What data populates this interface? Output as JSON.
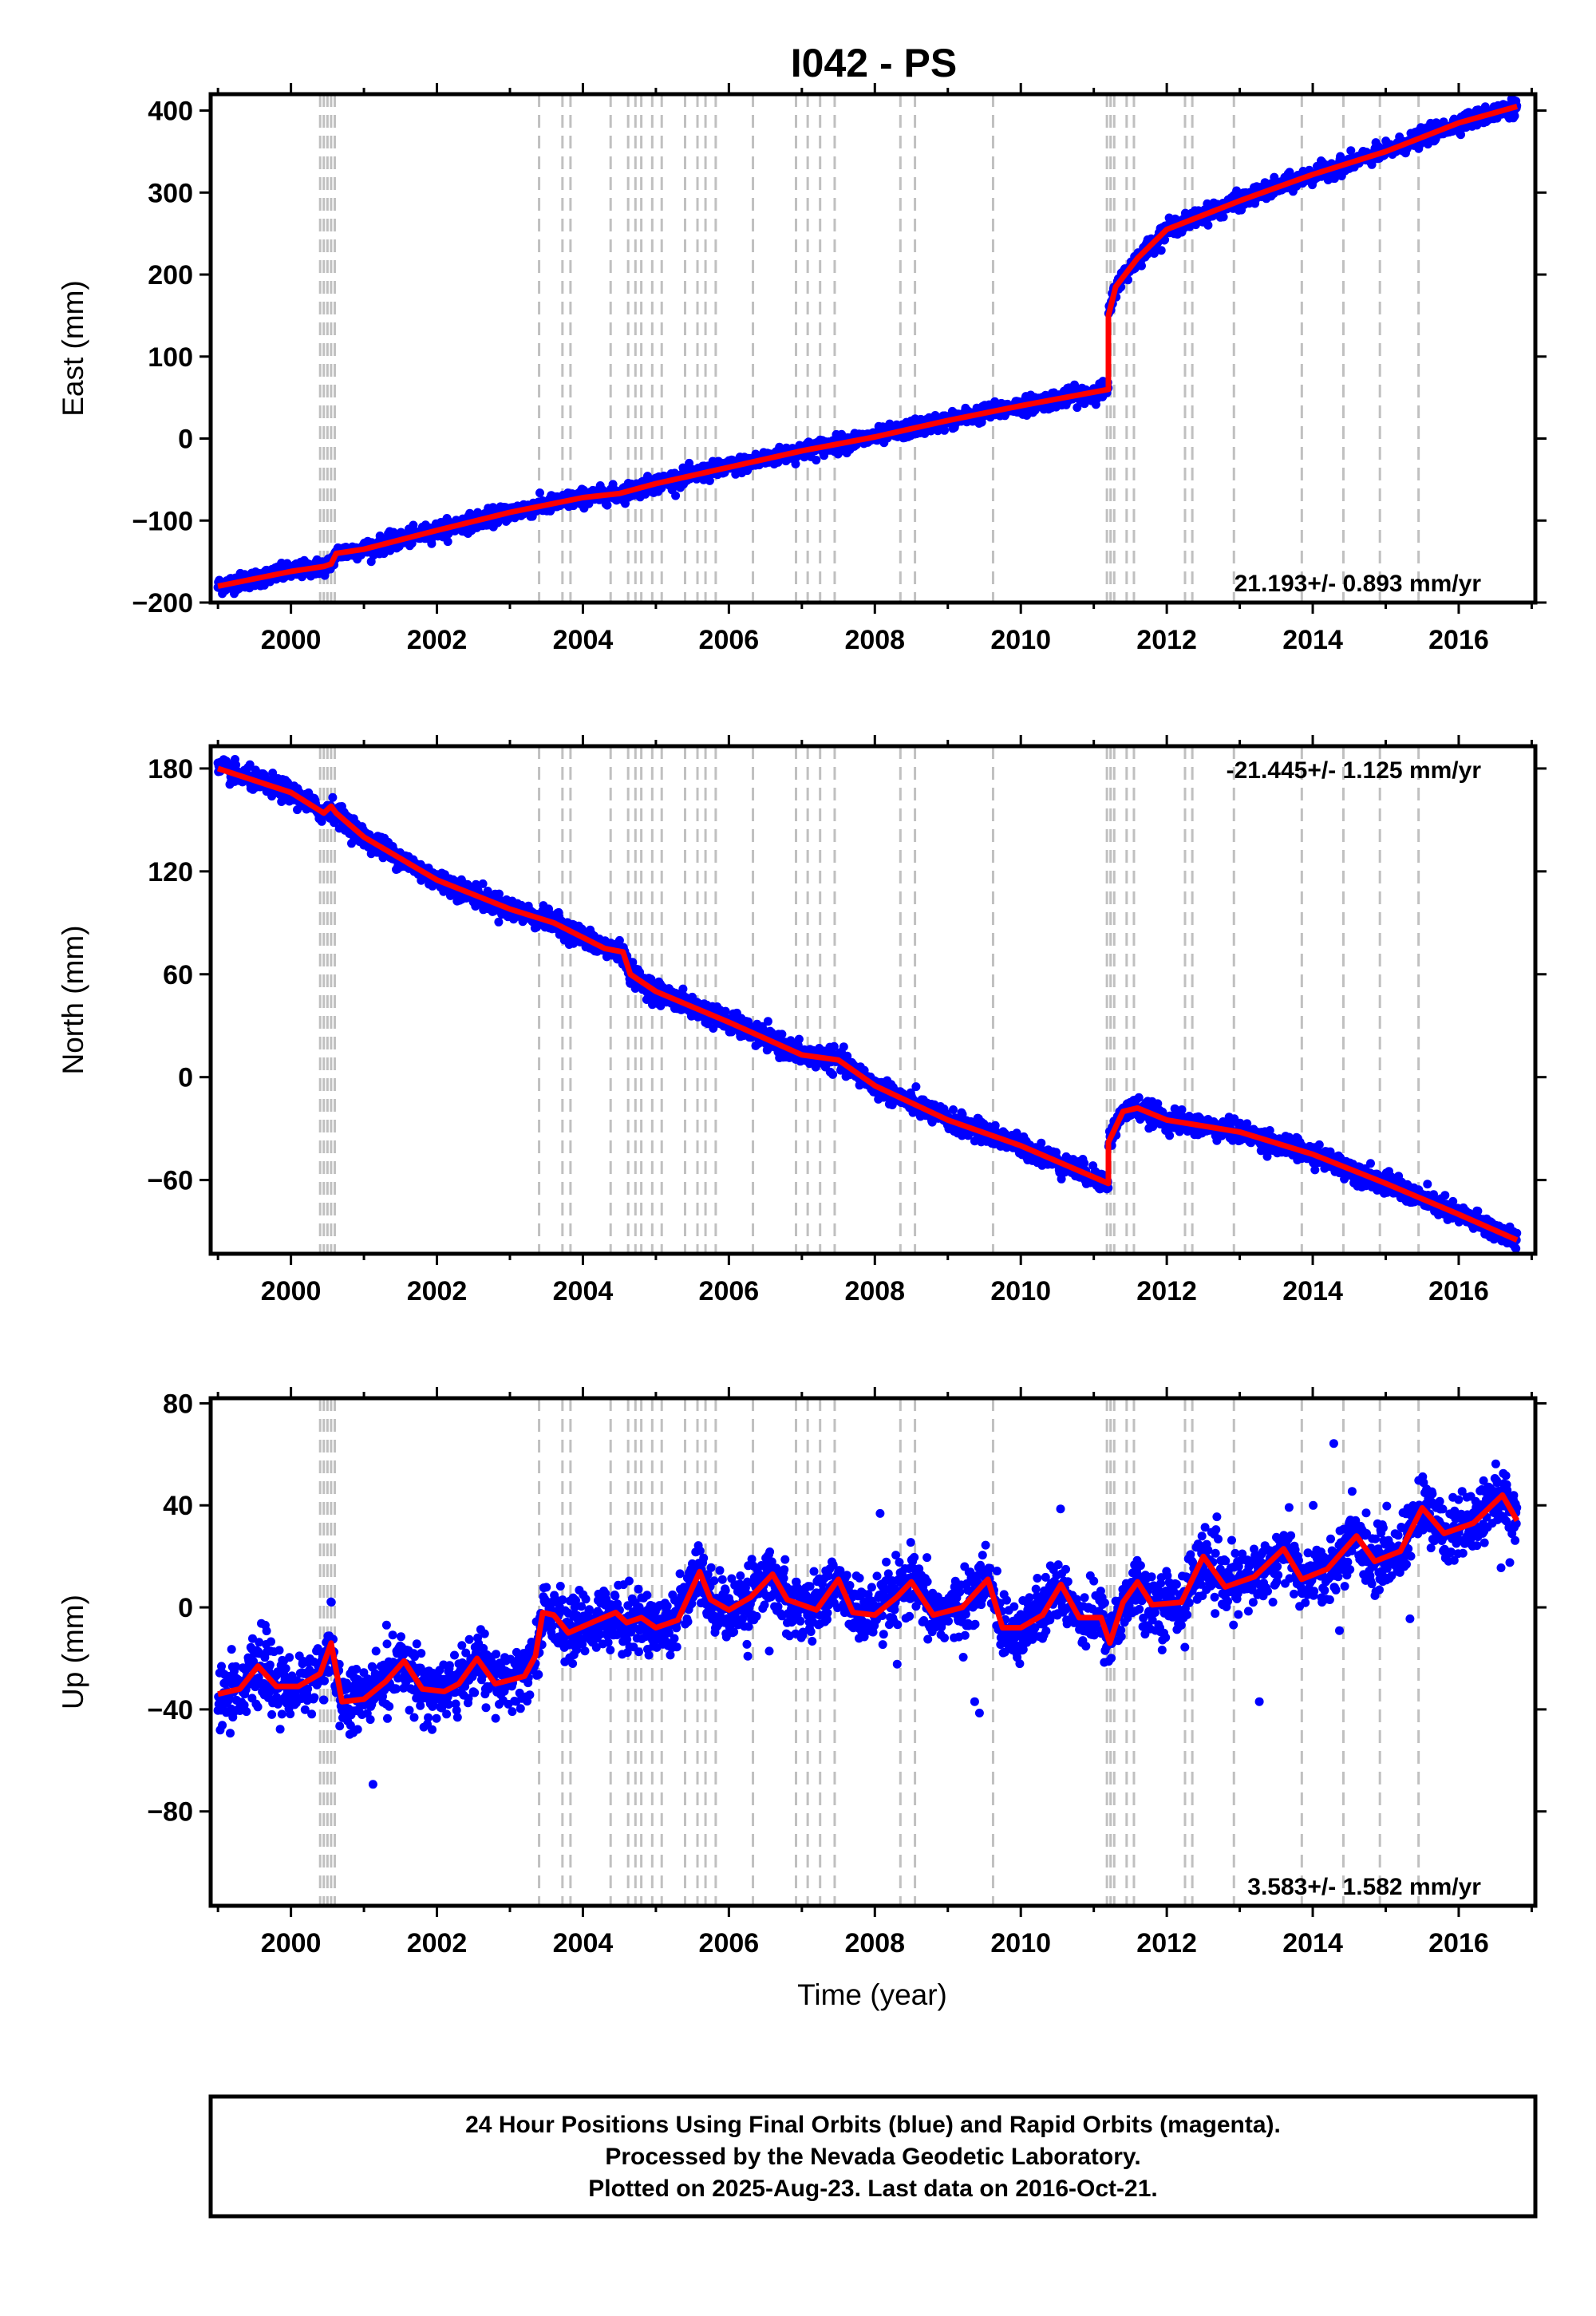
{
  "chart_data": {
    "title": "I042 - PS",
    "xlabel": "Time (year)",
    "xlim": [
      1998.9,
      2017.05
    ],
    "xticks": [
      "2000",
      "2002",
      "2004",
      "2006",
      "2008",
      "2010",
      "2012",
      "2014",
      "2016"
    ],
    "event_lines": [
      2000.4,
      2000.45,
      2000.5,
      2000.55,
      2000.6,
      2003.4,
      2003.72,
      2003.83,
      2004.38,
      2004.62,
      2004.72,
      2004.8,
      2004.95,
      2005.08,
      2005.4,
      2005.57,
      2005.68,
      2005.82,
      2006.33,
      2006.92,
      2007.08,
      2007.25,
      2007.45,
      2008.35,
      2008.55,
      2009.62,
      2011.18,
      2011.23,
      2011.28,
      2011.45,
      2011.55,
      2012.25,
      2012.35,
      2012.92,
      2013.85,
      2014.42,
      2014.92,
      2015.45
    ],
    "series_colors": {
      "positions": "#0000ff",
      "model": "#ff0000",
      "events": "#c0c0c0"
    },
    "panels": [
      {
        "ylabel": "East (mm)",
        "ylim": [
          -200,
          420
        ],
        "yticks": [
          "−200",
          "−100",
          "0",
          "100",
          "200",
          "300",
          "400"
        ],
        "ytick_values": [
          -200,
          -100,
          0,
          100,
          200,
          300,
          400
        ],
        "rate": "21.193+/- 0.893 mm/yr",
        "rate_position": "bottom-right",
        "model": {
          "x": [
            1999.0,
            2000.0,
            2000.45,
            2000.55,
            2000.62,
            2001.0,
            2002.0,
            2003.0,
            2004.0,
            2004.5,
            2005.0,
            2006.0,
            2007.0,
            2008.0,
            2009.0,
            2010.0,
            2011.2,
            2011.2,
            2011.3,
            2011.6,
            2012.0,
            2013.0,
            2014.0,
            2015.0,
            2016.0,
            2016.8
          ],
          "y": [
            -180,
            -162,
            -156,
            -153,
            -140,
            -135,
            -112,
            -90,
            -72,
            -67,
            -55,
            -35,
            -15,
            2,
            22,
            40,
            60,
            150,
            185,
            220,
            255,
            290,
            322,
            350,
            385,
            405
          ]
        },
        "scatter_sd": 5
      },
      {
        "ylabel": "North (mm)",
        "ylim": [
          -103,
          193
        ],
        "yticks": [
          "−60",
          "0",
          "60",
          "120",
          "180"
        ],
        "ytick_values": [
          -60,
          0,
          60,
          120,
          180
        ],
        "rate": "-21.445+/- 1.125 mm/yr",
        "rate_position": "top-right",
        "model": {
          "x": [
            1999.0,
            2000.0,
            2000.45,
            2000.55,
            2000.62,
            2001.0,
            2002.0,
            2003.0,
            2003.6,
            2004.3,
            2004.55,
            2004.65,
            2005.0,
            2006.0,
            2007.0,
            2007.5,
            2008.0,
            2009.0,
            2010.0,
            2011.2,
            2011.2,
            2011.4,
            2011.6,
            2012.0,
            2013.0,
            2014.0,
            2015.0,
            2016.0,
            2016.8
          ],
          "y": [
            180,
            166,
            154,
            158,
            154,
            140,
            115,
            98,
            90,
            75,
            73,
            60,
            50,
            32,
            13,
            10,
            -5,
            -25,
            -40,
            -62,
            -38,
            -20,
            -18,
            -25,
            -32,
            -45,
            -62,
            -80,
            -95
          ]
        },
        "scatter_sd": 3
      },
      {
        "ylabel": "Up (mm)",
        "ylim": [
          -117,
          82
        ],
        "yticks": [
          "−80",
          "−40",
          "0",
          "40",
          "80"
        ],
        "ytick_values": [
          -80,
          -40,
          0,
          40,
          80
        ],
        "rate": "3.583+/- 1.582 mm/yr",
        "rate_position": "bottom-right",
        "model": {
          "x": [
            1999.0,
            1999.3,
            1999.55,
            1999.8,
            2000.1,
            2000.4,
            2000.55,
            2000.7,
            2001.0,
            2001.3,
            2001.55,
            2001.8,
            2002.1,
            2002.3,
            2002.55,
            2002.8,
            2003.2,
            2003.35,
            2003.45,
            2003.6,
            2003.8,
            2004.2,
            2004.45,
            2004.6,
            2004.8,
            2005.0,
            2005.3,
            2005.6,
            2005.75,
            2006.0,
            2006.3,
            2006.6,
            2006.8,
            2007.2,
            2007.5,
            2007.7,
            2008.0,
            2008.3,
            2008.5,
            2008.8,
            2009.2,
            2009.55,
            2009.75,
            2010.0,
            2010.3,
            2010.55,
            2010.8,
            2011.1,
            2011.22,
            2011.4,
            2011.6,
            2011.8,
            2012.2,
            2012.5,
            2012.8,
            2013.2,
            2013.6,
            2013.85,
            2014.2,
            2014.6,
            2014.85,
            2015.2,
            2015.5,
            2015.8,
            2016.2,
            2016.6,
            2016.8
          ],
          "y": [
            -34,
            -32,
            -23,
            -31,
            -31,
            -26,
            -14,
            -37,
            -36,
            -29,
            -21,
            -32,
            -33,
            -30,
            -20,
            -30,
            -27,
            -19,
            -2,
            -3,
            -10,
            -5,
            -2,
            -6,
            -4,
            -8,
            -5,
            14,
            3,
            -1,
            4,
            13,
            3,
            -1,
            11,
            -2,
            -3,
            4,
            10,
            -3,
            0,
            11,
            -8,
            -8,
            -3,
            9,
            -4,
            -4,
            -14,
            2,
            10,
            1,
            2,
            20,
            8,
            12,
            23,
            11,
            15,
            28,
            18,
            22,
            39,
            29,
            33,
            44,
            34
          ],
          "x_extra": []
        },
        "scatter_sd": 6
      }
    ]
  },
  "footer": {
    "lines": [
      "24 Hour Positions Using Final Orbits (blue) and Rapid Orbits (magenta).",
      "Processed by the Nevada Geodetic Laboratory.",
      "Plotted on 2025-Aug-23. Last data on 2016-Oct-21."
    ]
  }
}
